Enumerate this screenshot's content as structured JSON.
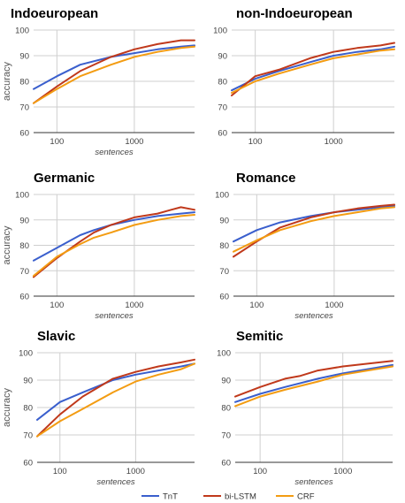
{
  "legend": [
    {
      "name": "TnT",
      "color": "#3a5fcd"
    },
    {
      "name": "bi-LSTM",
      "color": "#c0391b"
    },
    {
      "name": "CRF",
      "color": "#f39c12"
    }
  ],
  "y_axis_label": "accuracy",
  "x_axis_label": "sentences",
  "chart_data": [
    {
      "type": "line",
      "title": "Indoeuropean",
      "xscale": "log",
      "xlim": [
        50,
        6000
      ],
      "ylim": [
        60,
        100
      ],
      "yticks": [
        60,
        70,
        80,
        90,
        100
      ],
      "xticks": [
        100,
        1000
      ],
      "xlabel": "sentences",
      "ylabel": "accuracy",
      "grid": true,
      "series": [
        {
          "name": "TnT",
          "color": "#3a5fcd",
          "x": [
            50,
            100,
            200,
            500,
            1000,
            2000,
            4000,
            6000
          ],
          "y": [
            77,
            82,
            86.5,
            89.5,
            91,
            92.5,
            93.5,
            94
          ]
        },
        {
          "name": "bi-LSTM",
          "color": "#c0391b",
          "x": [
            50,
            100,
            200,
            500,
            1000,
            2000,
            4000,
            6000
          ],
          "y": [
            71.5,
            78,
            84,
            89.5,
            92.5,
            94.5,
            96,
            96
          ]
        },
        {
          "name": "CRF",
          "color": "#f39c12",
          "x": [
            50,
            100,
            200,
            500,
            1000,
            2000,
            4000,
            6000
          ],
          "y": [
            71.5,
            77,
            82,
            86.5,
            89.5,
            91.5,
            93,
            93.5
          ]
        }
      ]
    },
    {
      "type": "line",
      "title": "non-Indoeuropean",
      "xscale": "log",
      "xlim": [
        50,
        6000
      ],
      "ylim": [
        60,
        100
      ],
      "yticks": [
        60,
        70,
        80,
        90,
        100
      ],
      "xticks": [
        100,
        1000
      ],
      "xlabel": "",
      "ylabel": "",
      "grid": true,
      "series": [
        {
          "name": "TnT",
          "color": "#3a5fcd",
          "x": [
            50,
            100,
            200,
            500,
            1000,
            2000,
            4000,
            6000
          ],
          "y": [
            76.5,
            81,
            84,
            87.5,
            90,
            91.5,
            92.5,
            93.5
          ]
        },
        {
          "name": "bi-LSTM",
          "color": "#c0391b",
          "x": [
            50,
            100,
            200,
            500,
            1000,
            2000,
            4000,
            6000
          ],
          "y": [
            74.5,
            82,
            84.5,
            89,
            91.5,
            93,
            94,
            95
          ]
        },
        {
          "name": "CRF",
          "color": "#f39c12",
          "x": [
            50,
            100,
            200,
            500,
            1000,
            2000,
            4000,
            6000
          ],
          "y": [
            75.5,
            80,
            83,
            86.5,
            89,
            90.5,
            92,
            92.5
          ]
        }
      ]
    },
    {
      "type": "line",
      "title": "Germanic",
      "xscale": "log",
      "xlim": [
        50,
        6000
      ],
      "ylim": [
        60,
        100
      ],
      "yticks": [
        60,
        70,
        80,
        90,
        100
      ],
      "xticks": [
        100,
        1000
      ],
      "xlabel": "sentences",
      "ylabel": "accuracy",
      "grid": true,
      "series": [
        {
          "name": "TnT",
          "color": "#3a5fcd",
          "x": [
            50,
            100,
            200,
            300,
            500,
            1000,
            2000,
            4000,
            6000
          ],
          "y": [
            74,
            79,
            84,
            86,
            88,
            90,
            91.5,
            92.5,
            93
          ]
        },
        {
          "name": "bi-LSTM",
          "color": "#c0391b",
          "x": [
            50,
            100,
            200,
            300,
            500,
            1000,
            2000,
            3000,
            4000,
            6000
          ],
          "y": [
            67.5,
            75,
            81.5,
            85,
            88,
            91,
            92.5,
            94,
            95,
            94
          ]
        },
        {
          "name": "CRF",
          "color": "#f39c12",
          "x": [
            50,
            100,
            200,
            300,
            500,
            1000,
            2000,
            4000,
            6000
          ],
          "y": [
            68,
            75.5,
            80.5,
            83,
            85,
            88,
            90,
            91.5,
            92
          ]
        }
      ]
    },
    {
      "type": "line",
      "title": "Romance",
      "xscale": "log",
      "xlim": [
        50,
        6000
      ],
      "ylim": [
        60,
        100
      ],
      "yticks": [
        60,
        70,
        80,
        90,
        100
      ],
      "xticks": [
        100,
        1000
      ],
      "xlabel": "sentences",
      "ylabel": "",
      "grid": true,
      "series": [
        {
          "name": "TnT",
          "color": "#3a5fcd",
          "x": [
            50,
            100,
            200,
            500,
            1000,
            2000,
            4000,
            6000
          ],
          "y": [
            81.5,
            86,
            89,
            91.5,
            93,
            94,
            95,
            95.5
          ]
        },
        {
          "name": "bi-LSTM",
          "color": "#c0391b",
          "x": [
            50,
            100,
            200,
            500,
            1000,
            2000,
            4000,
            6000
          ],
          "y": [
            75.5,
            81.5,
            87,
            91,
            93,
            94.5,
            95.5,
            96
          ]
        },
        {
          "name": "CRF",
          "color": "#f39c12",
          "x": [
            50,
            100,
            200,
            500,
            1000,
            2000,
            4000,
            6000
          ],
          "y": [
            77.5,
            82,
            86,
            89.5,
            91.5,
            93,
            94.5,
            95
          ]
        }
      ]
    },
    {
      "type": "line",
      "title": "Slavic",
      "xscale": "log",
      "xlim": [
        50,
        6000
      ],
      "ylim": [
        60,
        100
      ],
      "yticks": [
        60,
        70,
        80,
        90,
        100
      ],
      "xticks": [
        100,
        1000
      ],
      "xlabel": "sentences",
      "ylabel": "accuracy",
      "grid": true,
      "series": [
        {
          "name": "TnT",
          "color": "#3a5fcd",
          "x": [
            50,
            100,
            200,
            500,
            1000,
            2000,
            4000,
            6000
          ],
          "y": [
            75.5,
            82,
            85.5,
            90,
            92,
            93.5,
            95,
            96
          ]
        },
        {
          "name": "bi-LSTM",
          "color": "#c0391b",
          "x": [
            50,
            100,
            200,
            500,
            1000,
            2000,
            4000,
            6000
          ],
          "y": [
            69.5,
            77.5,
            84,
            90.5,
            93,
            95,
            96.5,
            97.5
          ]
        },
        {
          "name": "CRF",
          "color": "#f39c12",
          "x": [
            50,
            100,
            200,
            500,
            1000,
            2000,
            4000,
            6000
          ],
          "y": [
            69.5,
            75,
            79.5,
            85.5,
            89.5,
            92,
            94,
            96
          ]
        }
      ]
    },
    {
      "type": "line",
      "title": "Semitic",
      "xscale": "log",
      "xlim": [
        50,
        4000
      ],
      "ylim": [
        60,
        100
      ],
      "yticks": [
        60,
        70,
        80,
        90,
        100
      ],
      "xticks": [
        100,
        1000
      ],
      "xlabel": "sentences",
      "ylabel": "",
      "grid": true,
      "series": [
        {
          "name": "TnT",
          "color": "#3a5fcd",
          "x": [
            50,
            100,
            200,
            500,
            1000,
            2000,
            4000
          ],
          "y": [
            82,
            85,
            87.5,
            90.5,
            92.5,
            94,
            95.5
          ]
        },
        {
          "name": "bi-LSTM",
          "color": "#c0391b",
          "x": [
            50,
            100,
            200,
            300,
            500,
            1000,
            2000,
            4000
          ],
          "y": [
            84,
            87.5,
            90.5,
            91.5,
            93.5,
            95,
            96,
            97
          ]
        },
        {
          "name": "CRF",
          "color": "#f39c12",
          "x": [
            50,
            100,
            200,
            500,
            1000,
            2000,
            4000
          ],
          "y": [
            80.5,
            84,
            86.5,
            89.5,
            92,
            93.5,
            95
          ]
        }
      ]
    }
  ]
}
